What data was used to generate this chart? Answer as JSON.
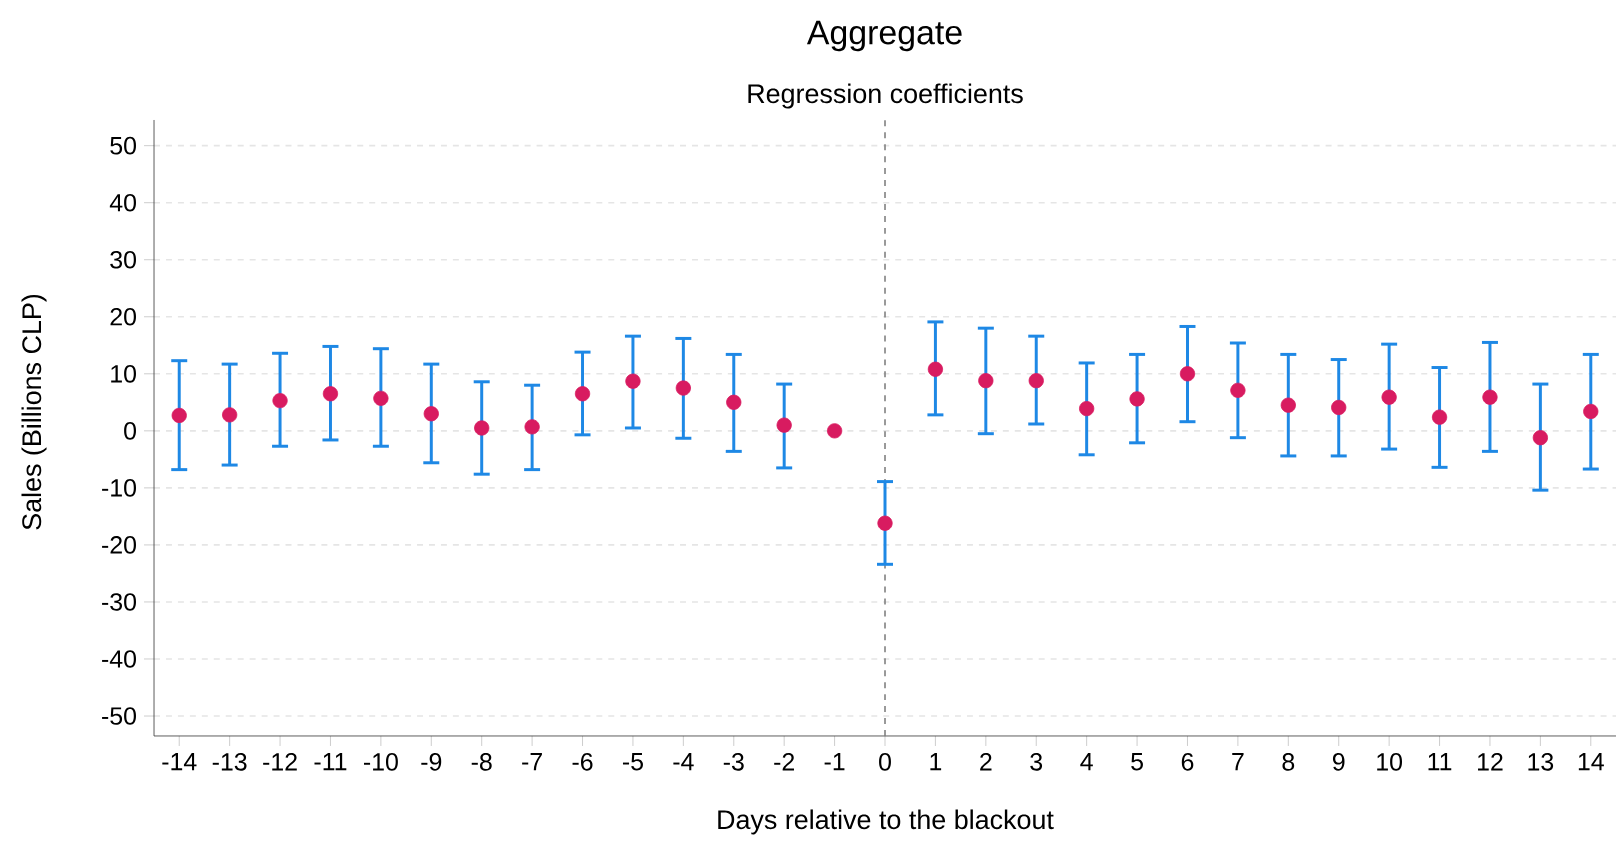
{
  "chart_data": {
    "type": "scatter",
    "title": "Aggregate",
    "subtitle": "Regression coefficients",
    "xlabel": "Days relative to the blackout",
    "ylabel": "Sales (Billions CLP)",
    "x": [
      -14,
      -13,
      -12,
      -11,
      -10,
      -9,
      -8,
      -7,
      -6,
      -5,
      -4,
      -3,
      -2,
      -1,
      0,
      1,
      2,
      3,
      4,
      5,
      6,
      7,
      8,
      9,
      10,
      11,
      12,
      13,
      14
    ],
    "values": [
      2.7,
      2.8,
      5.3,
      6.5,
      5.7,
      3.0,
      0.5,
      0.7,
      6.5,
      8.7,
      7.5,
      5.0,
      1.0,
      0,
      -16.2,
      10.8,
      8.8,
      8.8,
      3.9,
      5.6,
      10.0,
      7.1,
      4.5,
      4.1,
      5.9,
      2.4,
      5.9,
      -1.2,
      3.4
    ],
    "errors": [
      [
        -6.8,
        12.3
      ],
      [
        -6.0,
        11.7
      ],
      [
        -2.7,
        13.6
      ],
      [
        -1.6,
        14.8
      ],
      [
        -2.7,
        14.4
      ],
      [
        -5.6,
        11.7
      ],
      [
        -7.6,
        8.6
      ],
      [
        -6.8,
        8.0
      ],
      [
        -0.7,
        13.8
      ],
      [
        0.5,
        16.6
      ],
      [
        -1.3,
        16.2
      ],
      [
        -3.6,
        13.4
      ],
      [
        -6.5,
        8.2
      ],
      null,
      [
        -23.4,
        -8.9
      ],
      [
        2.8,
        19.1
      ],
      [
        -0.5,
        18.0
      ],
      [
        1.2,
        16.6
      ],
      [
        -4.2,
        11.9
      ],
      [
        -2.1,
        13.4
      ],
      [
        1.6,
        18.3
      ],
      [
        -1.2,
        15.4
      ],
      [
        -4.4,
        13.4
      ],
      [
        -4.4,
        12.5
      ],
      [
        -3.2,
        15.2
      ],
      [
        -6.4,
        11.1
      ],
      [
        -3.6,
        15.5
      ],
      [
        -10.4,
        8.2
      ],
      [
        -6.7,
        13.4
      ]
    ],
    "color": "#d81b60",
    "marker": "circle",
    "grid": "y",
    "xlim": [
      -14.5,
      14.5
    ],
    "ylim": [
      -53.5,
      54.5
    ],
    "xticks": [
      -14,
      -13,
      -12,
      -11,
      -10,
      -9,
      -8,
      -7,
      -6,
      -5,
      -4,
      -3,
      -2,
      -1,
      0,
      1,
      2,
      3,
      4,
      5,
      6,
      7,
      8,
      9,
      10,
      11,
      12,
      13,
      14
    ],
    "yticks": [
      -50,
      -40,
      -30,
      -20,
      -10,
      0,
      10,
      20,
      30,
      40,
      50
    ],
    "ref_lines": [
      {
        "axis": "x",
        "value": 0,
        "color": "#808080",
        "line_style": "dashed"
      }
    ]
  }
}
